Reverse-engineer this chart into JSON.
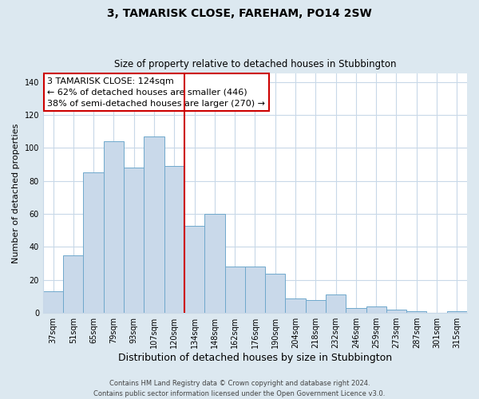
{
  "title": "3, TAMARISK CLOSE, FAREHAM, PO14 2SW",
  "subtitle": "Size of property relative to detached houses in Stubbington",
  "xlabel": "Distribution of detached houses by size in Stubbington",
  "ylabel": "Number of detached properties",
  "bin_labels": [
    "37sqm",
    "51sqm",
    "65sqm",
    "79sqm",
    "93sqm",
    "107sqm",
    "120sqm",
    "134sqm",
    "148sqm",
    "162sqm",
    "176sqm",
    "190sqm",
    "204sqm",
    "218sqm",
    "232sqm",
    "246sqm",
    "259sqm",
    "273sqm",
    "287sqm",
    "301sqm",
    "315sqm"
  ],
  "bar_values": [
    13,
    35,
    85,
    104,
    88,
    107,
    89,
    53,
    60,
    28,
    28,
    24,
    9,
    8,
    11,
    3,
    4,
    2,
    1,
    0,
    1
  ],
  "bar_color": "#c9d9ea",
  "bar_edge_color": "#6fa8cc",
  "vline_x_index": 6,
  "vline_color": "#cc0000",
  "annotation_lines": [
    "3 TAMARISK CLOSE: 124sqm",
    "← 62% of detached houses are smaller (446)",
    "38% of semi-detached houses are larger (270) →"
  ],
  "annotation_box_color": "#ffffff",
  "annotation_box_edge_color": "#cc0000",
  "ylim": [
    0,
    145
  ],
  "yticks": [
    0,
    20,
    40,
    60,
    80,
    100,
    120,
    140
  ],
  "fig_bg_color": "#dce8f0",
  "plot_bg_color": "#ffffff",
  "grid_color": "#c8d8e8",
  "footer_line1": "Contains HM Land Registry data © Crown copyright and database right 2024.",
  "footer_line2": "Contains public sector information licensed under the Open Government Licence v3.0.",
  "title_fontsize": 10,
  "subtitle_fontsize": 8.5,
  "xlabel_fontsize": 9,
  "ylabel_fontsize": 8,
  "tick_fontsize": 7,
  "annotation_fontsize": 8,
  "footer_fontsize": 6
}
